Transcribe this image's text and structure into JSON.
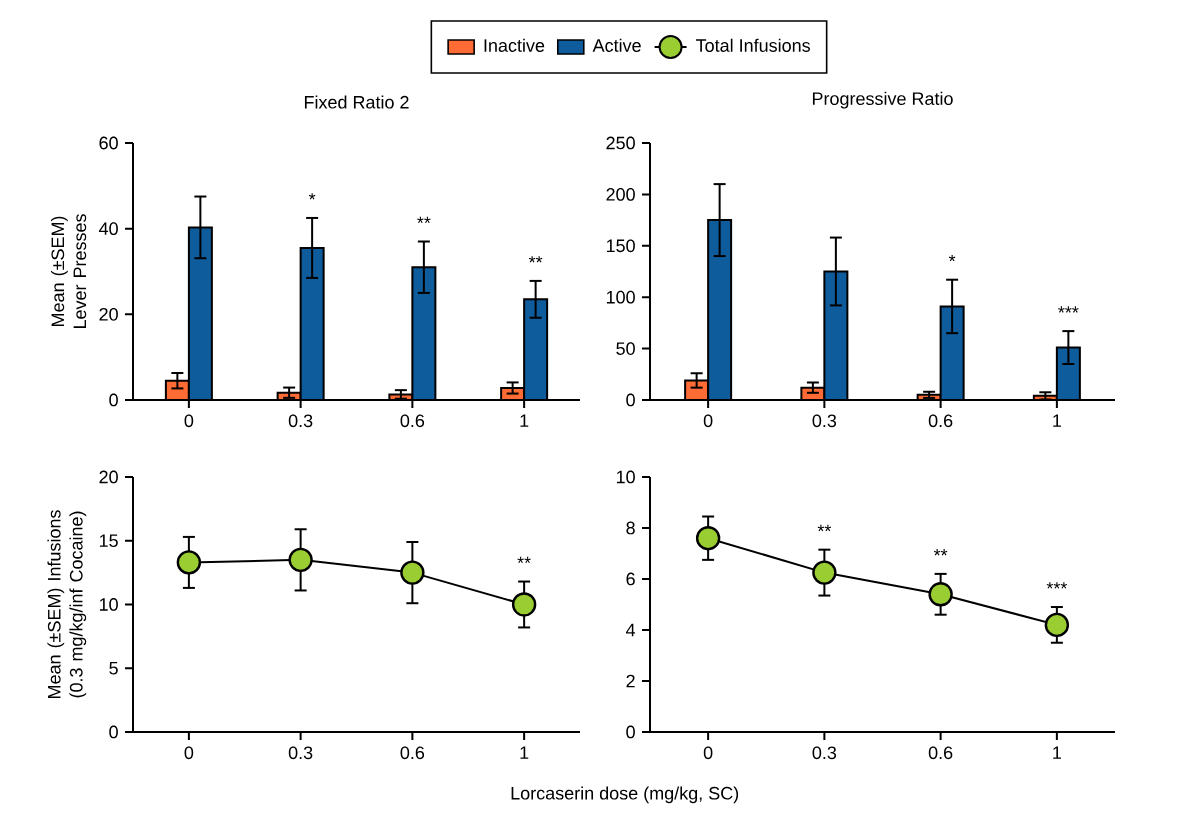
{
  "chart_data": [
    {
      "type": "bar",
      "title": "Fixed Ratio 2",
      "ylabel": "Mean  (±SEM) Lever Presses",
      "categories": [
        "0",
        "0.3",
        "0.6",
        "1"
      ],
      "ylim": [
        0,
        60
      ],
      "yticks": [
        0,
        20,
        40,
        60
      ],
      "legend": "top",
      "series": [
        {
          "name": "Inactive",
          "color": "#ff6b35",
          "values": [
            4.5,
            1.7,
            1.3,
            2.8
          ],
          "errors": [
            1.8,
            1.2,
            1.0,
            1.3
          ]
        },
        {
          "name": "Active",
          "color": "#0f5c9c",
          "values": [
            40.3,
            35.5,
            31,
            23.5
          ],
          "errors": [
            7.2,
            7,
            6,
            4.3
          ]
        }
      ],
      "annotations": [
        {
          "text": "*",
          "x": "0.3",
          "y": 35.5
        },
        {
          "text": "**",
          "x": "0.6",
          "y": 31
        },
        {
          "text": "**",
          "x": "1",
          "y": 23.5
        }
      ]
    },
    {
      "type": "bar",
      "title": "Progressive  Ratio",
      "categories": [
        "0",
        "0.3",
        "0.6",
        "1"
      ],
      "ylim": [
        0,
        250
      ],
      "yticks": [
        0,
        50,
        100,
        150,
        200,
        250
      ],
      "series": [
        {
          "color": "#ff6b35",
          "values": [
            19,
            12,
            5,
            4
          ],
          "errors": [
            7,
            5,
            3,
            3.5
          ]
        },
        {
          "color": "#0f5c9c",
          "values": [
            175,
            125,
            91,
            51
          ],
          "errors": [
            35,
            33,
            26,
            16
          ]
        }
      ],
      "annotations": [
        {
          "text": "*",
          "x": "0.6",
          "y": 91
        },
        {
          "text": "***",
          "x": "1",
          "y": 51
        }
      ]
    },
    {
      "type": "line",
      "ylabel": "Mean (±SEM) Infusions (0.3 mg/kg/inf Cocaine)",
      "xlabel": "Lorcaserin dose (mg/kg, SC)",
      "categories": [
        "0",
        "0.3",
        "0.6",
        "1"
      ],
      "ylim": [
        0,
        20
      ],
      "yticks": [
        0,
        5,
        10,
        15,
        20
      ],
      "legend": "top",
      "marker": "circle",
      "series": [
        {
          "name": "Total Infusions",
          "color": "#9acd32",
          "values": [
            13.3,
            13.5,
            12.5,
            10.0
          ],
          "errors": [
            2.0,
            2.4,
            2.4,
            1.8
          ]
        }
      ],
      "annotations": [
        {
          "text": "**",
          "x": "1",
          "y": 10.0
        }
      ]
    },
    {
      "type": "line",
      "categories": [
        "0",
        "0.3",
        "0.6",
        "1"
      ],
      "ylim": [
        0,
        10
      ],
      "yticks": [
        0,
        2,
        4,
        6,
        8,
        10
      ],
      "marker": "circle",
      "series": [
        {
          "color": "#9acd32",
          "values": [
            7.6,
            6.25,
            5.4,
            4.2
          ],
          "errors": [
            0.85,
            0.9,
            0.8,
            0.7
          ]
        }
      ],
      "annotations": [
        {
          "text": "**",
          "x": "0.3",
          "y": 6.25
        },
        {
          "text": "**",
          "x": "0.6",
          "y": 5.4
        },
        {
          "text": "***",
          "x": "1",
          "y": 4.2
        }
      ]
    }
  ]
}
